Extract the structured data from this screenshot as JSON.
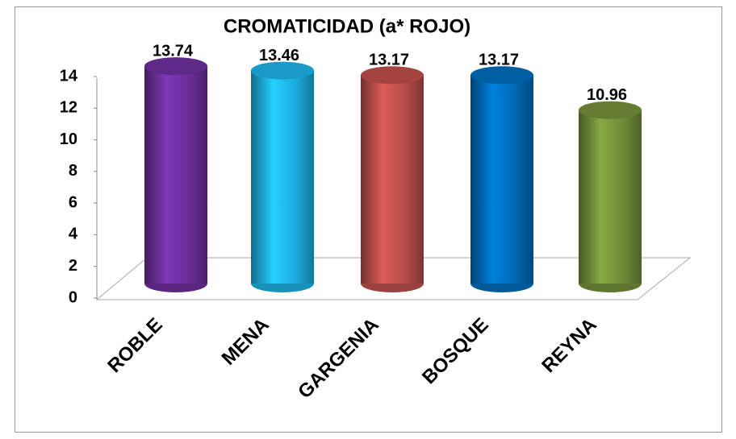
{
  "chart_data": {
    "type": "bar",
    "title": "CROMATICIDAD (a* ROJO)",
    "categories": [
      "ROBLE",
      "MENA",
      "GARGENIA",
      "BOSQUE",
      "REYNA"
    ],
    "values": [
      13.74,
      13.46,
      13.17,
      13.17,
      10.96
    ],
    "colors": [
      "#7030a0",
      "#1fb5ea",
      "#c0504d",
      "#0070c0",
      "#77933c"
    ],
    "ylim": [
      0,
      14
    ],
    "yticks": [
      0,
      2,
      4,
      6,
      8,
      10,
      12,
      14
    ],
    "grid": false
  }
}
